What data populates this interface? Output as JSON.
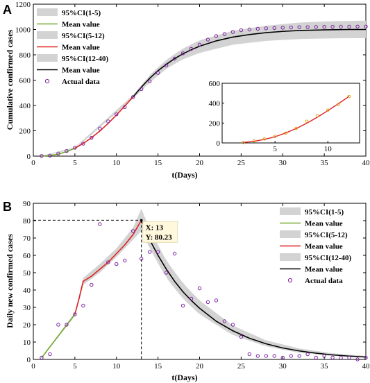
{
  "chart_data": [
    {
      "type": "line",
      "panel_label": "A",
      "xlabel": "t(Days)",
      "ylabel": "Cumulative confirmed cases",
      "xlim": [
        0,
        40
      ],
      "ylim": [
        0,
        1200
      ],
      "xticks": [
        0,
        5,
        10,
        15,
        20,
        25,
        30,
        35,
        40
      ],
      "yticks": [
        0,
        200,
        400,
        600,
        800,
        1000,
        1200
      ],
      "legend_position": "top-left",
      "legend": [
        "95%CI(1-5)",
        "Mean value",
        "95%CI(5-12)",
        "Mean value",
        "95%CI(12-40)",
        "Mean value",
        "Actual data"
      ],
      "series": [
        {
          "name": "Mean value",
          "role": "mean",
          "color": "#77AC30",
          "x": [
            1,
            2,
            3,
            4,
            5
          ],
          "y": [
            1,
            5,
            16,
            35,
            62
          ]
        },
        {
          "name": "Mean value",
          "role": "mean",
          "color": "#E02020",
          "x": [
            5,
            6,
            7,
            8,
            9,
            10,
            11,
            12
          ],
          "y": [
            62,
            100,
            145,
            198,
            258,
            325,
            395,
            468
          ]
        },
        {
          "name": "Mean value",
          "role": "mean",
          "color": "#000000",
          "x": [
            12,
            13,
            14,
            15,
            16,
            17,
            18,
            19,
            20,
            22,
            24,
            26,
            28,
            30,
            32,
            35,
            38,
            40
          ],
          "y": [
            468,
            545,
            615,
            675,
            725,
            770,
            808,
            840,
            868,
            910,
            940,
            960,
            975,
            985,
            992,
            997,
            1000,
            1000
          ]
        },
        {
          "name": "Actual data",
          "role": "scatter",
          "color": "#7B1FA2",
          "x": [
            1,
            2,
            3,
            4,
            5,
            6,
            7,
            8,
            9,
            10,
            11,
            12,
            13,
            14,
            15,
            16,
            17,
            18,
            19,
            20,
            21,
            22,
            23,
            24,
            25,
            26,
            27,
            28,
            29,
            30,
            31,
            32,
            33,
            34,
            35,
            36,
            37,
            38,
            39,
            40
          ],
          "y": [
            1,
            4,
            20,
            40,
            66,
            98,
            145,
            218,
            274,
            330,
            387,
            467,
            529,
            591,
            657,
            717,
            770,
            812,
            847,
            880,
            920,
            948,
            964,
            980,
            994,
            1000,
            1006,
            1009,
            1012,
            1014,
            1016,
            1018,
            1019,
            1020,
            1021,
            1021,
            1022,
            1022,
            1023,
            1023
          ]
        }
      ],
      "ci_bands": [
        {
          "name": "95%CI(1-5)",
          "x": [
            1,
            5
          ],
          "lower": [
            0,
            55
          ],
          "upper": [
            3,
            70
          ]
        },
        {
          "name": "95%CI(5-12)",
          "x": [
            5,
            12
          ],
          "lower": [
            55,
            455
          ],
          "upper": [
            70,
            482
          ]
        },
        {
          "name": "95%CI(12-40)",
          "x": [
            12,
            14,
            16,
            18,
            20,
            24,
            28,
            32,
            36,
            40
          ],
          "lower": [
            455,
            580,
            690,
            765,
            815,
            880,
            910,
            925,
            930,
            932
          ],
          "upper": [
            482,
            640,
            760,
            850,
            915,
            990,
            1030,
            1055,
            1065,
            1070
          ]
        }
      ],
      "inset": {
        "xlim": [
          0,
          13
        ],
        "ylim": [
          0,
          600
        ],
        "xticks": [
          5,
          10
        ],
        "yticks": [
          0,
          200,
          400,
          600
        ],
        "mean": {
          "x": [
            2,
            3,
            4,
            5,
            6,
            7,
            8,
            9,
            10,
            11,
            12
          ],
          "y": [
            5,
            16,
            35,
            62,
            100,
            145,
            198,
            258,
            325,
            395,
            468
          ]
        },
        "actual": {
          "x": [
            2,
            3,
            4,
            5,
            6,
            7,
            8,
            9,
            10,
            11,
            12
          ],
          "y": [
            4,
            20,
            40,
            66,
            98,
            145,
            218,
            274,
            330,
            387,
            467
          ]
        }
      }
    },
    {
      "type": "line",
      "panel_label": "B",
      "xlabel": "t(Days)",
      "ylabel": "Daily new confirmed cases",
      "xlim": [
        0,
        40
      ],
      "ylim": [
        0,
        90
      ],
      "xticks": [
        0,
        5,
        10,
        15,
        20,
        25,
        30,
        35,
        40
      ],
      "yticks": [
        0,
        10,
        20,
        30,
        40,
        50,
        60,
        70,
        80,
        90
      ],
      "legend_position": "top-right",
      "legend": [
        "95%CI(1-5)",
        "Mean value",
        "95%CI(5-12)",
        "Mean value",
        "95%CI(12-40)",
        "Mean value",
        "Actual data"
      ],
      "annotation": {
        "x": 13,
        "y": 80.23,
        "line1": "X: 13",
        "line2": "Y: 80.23"
      },
      "series": [
        {
          "name": "Mean value",
          "role": "mean",
          "color": "#77AC30",
          "x": [
            1,
            5
          ],
          "y": [
            1,
            26
          ]
        },
        {
          "name": "Mean value",
          "role": "mean",
          "color": "#E02020",
          "x": [
            5,
            5.5,
            6,
            7,
            8,
            9,
            10,
            11,
            12,
            13
          ],
          "y": [
            26,
            35,
            45,
            48,
            52,
            56,
            61,
            66,
            72,
            80.23
          ]
        },
        {
          "name": "Mean value",
          "role": "mean",
          "color": "#000000",
          "x": [
            13,
            14,
            15,
            16,
            17,
            18,
            19,
            20,
            22,
            24,
            26,
            28,
            30,
            32,
            34,
            36,
            38,
            40
          ],
          "y": [
            80.23,
            69,
            60,
            52,
            45,
            39,
            34,
            29.5,
            22,
            16.5,
            12.2,
            9,
            6.6,
            4.9,
            3.6,
            2.6,
            1.9,
            1.4
          ]
        },
        {
          "name": "Actual data",
          "role": "scatter",
          "color": "#7B1FA2",
          "x": [
            1,
            2,
            3,
            4,
            5,
            6,
            7,
            8,
            9,
            10,
            11,
            12,
            13,
            14,
            15,
            16,
            17,
            18,
            19,
            20,
            21,
            22,
            23,
            24,
            25,
            26,
            27,
            28,
            29,
            30,
            31,
            32,
            33,
            34,
            35,
            36,
            37,
            38,
            39,
            40
          ],
          "y": [
            1,
            3,
            20,
            20,
            26,
            31,
            43,
            78,
            56,
            55,
            57,
            74,
            58,
            62,
            62,
            50,
            61,
            31,
            35,
            41,
            33,
            34,
            22,
            20,
            13,
            3,
            2,
            2,
            2,
            1,
            2,
            2,
            3,
            1,
            2,
            1,
            1,
            1,
            0,
            1
          ]
        }
      ],
      "ci_bands": [
        {
          "name": "95%CI(1-5)",
          "x": [
            1,
            5
          ],
          "lower": [
            0.5,
            25
          ],
          "upper": [
            1.5,
            27
          ]
        },
        {
          "name": "95%CI(5-12)",
          "x": [
            5,
            6,
            8,
            10,
            12,
            13
          ],
          "lower": [
            25,
            43,
            50,
            59,
            69,
            74
          ],
          "upper": [
            27,
            47,
            55,
            64,
            76,
            87
          ]
        },
        {
          "name": "95%CI(12-40)",
          "x": [
            13,
            14,
            16,
            18,
            20,
            24,
            28,
            32,
            36,
            40
          ],
          "lower": [
            74,
            64,
            47,
            35,
            26,
            14,
            7.5,
            3.8,
            2.0,
            1.0
          ],
          "upper": [
            87,
            75,
            57,
            44,
            34,
            19.5,
            11,
            6.3,
            3.5,
            2.0
          ]
        }
      ]
    }
  ]
}
